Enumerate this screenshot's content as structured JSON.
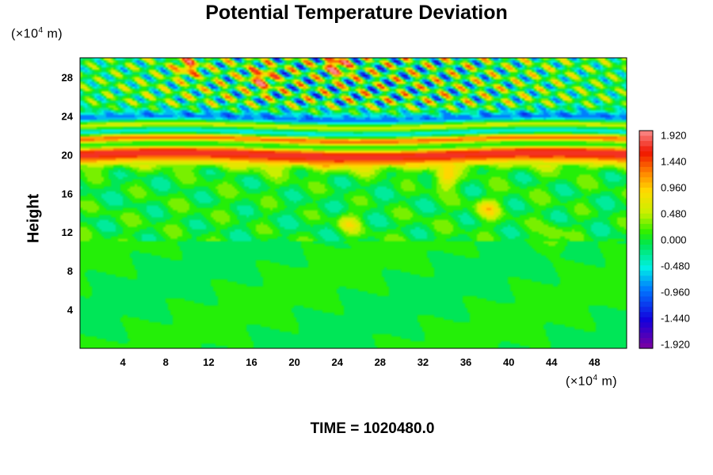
{
  "chart_data": {
    "type": "heatmap",
    "title": "Potential Temperature Deviation",
    "xlabel": "",
    "ylabel": "Height",
    "x_unit": "(×10⁴ m)",
    "y_unit": "(×10⁴ m)",
    "xlim": [
      0,
      51
    ],
    "ylim": [
      0,
      30
    ],
    "x_ticks": [
      4,
      8,
      12,
      16,
      20,
      24,
      28,
      32,
      36,
      40,
      44,
      48
    ],
    "y_ticks": [
      4,
      8,
      12,
      16,
      20,
      24,
      28
    ],
    "colorbar": {
      "min": -2.0,
      "max": 2.0,
      "tick_labels": [
        "1.920",
        "1.440",
        "0.960",
        "0.480",
        "0.000",
        "-0.480",
        "-0.960",
        "-1.440",
        "-1.920"
      ],
      "tick_values": [
        1.92,
        1.44,
        0.96,
        0.48,
        0.0,
        -0.48,
        -0.96,
        -1.44,
        -1.92
      ]
    },
    "footer": "TIME = 1020480.0"
  }
}
